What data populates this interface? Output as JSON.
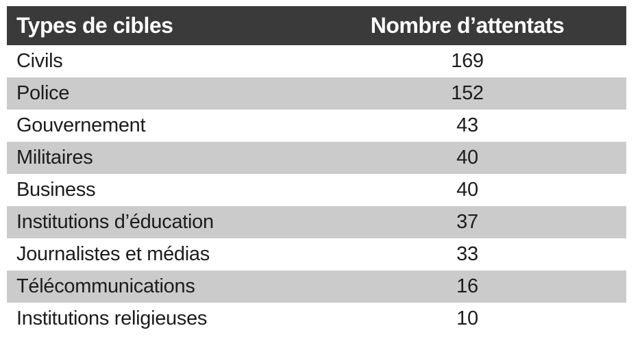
{
  "table": {
    "headers": [
      "Types de cibles",
      "Nombre d’attentats"
    ],
    "rows": [
      {
        "label": "Civils",
        "value": "169"
      },
      {
        "label": "Police",
        "value": "152"
      },
      {
        "label": "Gouvernement",
        "value": "43"
      },
      {
        "label": "Militaires",
        "value": "40"
      },
      {
        "label": "Business",
        "value": "40"
      },
      {
        "label": "Institutions d’éducation",
        "value": "37"
      },
      {
        "label": "Journalistes et médias",
        "value": "33"
      },
      {
        "label": "Télécommunications",
        "value": "16"
      },
      {
        "label": "Institutions religieuses",
        "value": "10"
      }
    ]
  },
  "colors": {
    "header_bg": "#3A3A3A",
    "header_text": "#FFFFFF",
    "row_odd_bg": "#FFFFFF",
    "row_even_bg": "#CBCBCB",
    "body_text": "#1C1C1C",
    "page_bg": "#FFFFFF"
  },
  "chart_data": {
    "type": "table",
    "title": "",
    "columns": [
      "Types de cibles",
      "Nombre d’attentats"
    ],
    "categories": [
      "Civils",
      "Police",
      "Gouvernement",
      "Militaires",
      "Business",
      "Institutions d’éducation",
      "Journalistes et médias",
      "Télécommunications",
      "Institutions religieuses"
    ],
    "values": [
      169,
      152,
      43,
      40,
      40,
      37,
      33,
      16,
      10
    ],
    "layout": {
      "header_style": "dark-bar-white-bold-text",
      "zebra_striping": true,
      "first_data_row_background": "white",
      "value_column_alignment": "center",
      "label_column_alignment": "left",
      "grid": false,
      "outer_border": false
    }
  }
}
